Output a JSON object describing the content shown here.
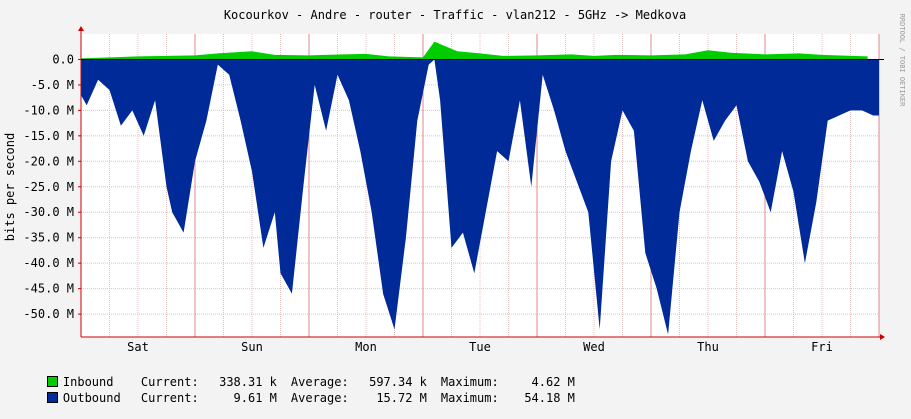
{
  "chart_data": {
    "type": "area",
    "title": "Kocourkov - Andre - router - Traffic - vlan212 - 5GHz -> Medkova",
    "ylabel": "bits per second",
    "side_note": "RRDTOOL / TOBI OETIKER",
    "x_categories": [
      "Sat",
      "Sun",
      "Mon",
      "Tue",
      "Wed",
      "Thu",
      "Fri"
    ],
    "y_ticks": [
      "0.0",
      "-5.0 M",
      "-10.0 M",
      "-15.0 M",
      "-20.0 M",
      "-25.0 M",
      "-30.0 M",
      "-35.0 M",
      "-40.0 M",
      "-45.0 M",
      "-50.0 M"
    ],
    "ylim": [
      -54.5,
      5
    ],
    "grid": true,
    "series": [
      {
        "name": "Inbound",
        "color": "#00cc00",
        "x_day": [
          0.0,
          0.5,
          1.0,
          1.2,
          1.5,
          1.7,
          2.0,
          2.3,
          2.5,
          2.7,
          3.0,
          3.1,
          3.3,
          3.5,
          3.7,
          4.0,
          4.3,
          4.5,
          4.7,
          5.0,
          5.3,
          5.5,
          5.7,
          6.0,
          6.3,
          6.5,
          6.9
        ],
        "values_M": [
          0.2,
          0.6,
          0.8,
          1.2,
          1.6,
          0.9,
          0.8,
          1.0,
          1.1,
          0.6,
          0.4,
          3.5,
          1.6,
          1.2,
          0.7,
          0.8,
          1.0,
          0.7,
          0.9,
          0.8,
          1.0,
          1.8,
          1.3,
          1.0,
          1.2,
          0.9,
          0.6
        ]
      },
      {
        "name": "Outbound",
        "color": "#002a97",
        "x_day": [
          0.0,
          0.05,
          0.15,
          0.25,
          0.35,
          0.45,
          0.55,
          0.65,
          0.75,
          0.8,
          0.9,
          1.0,
          1.1,
          1.2,
          1.3,
          1.4,
          1.5,
          1.6,
          1.7,
          1.75,
          1.85,
          1.95,
          2.05,
          2.15,
          2.25,
          2.35,
          2.45,
          2.55,
          2.65,
          2.75,
          2.85,
          2.95,
          3.05,
          3.1,
          3.15,
          3.25,
          3.35,
          3.45,
          3.55,
          3.65,
          3.75,
          3.85,
          3.95,
          4.05,
          4.15,
          4.25,
          4.35,
          4.45,
          4.55,
          4.65,
          4.75,
          4.85,
          4.95,
          5.05,
          5.15,
          5.25,
          5.35,
          5.45,
          5.55,
          5.65,
          5.75,
          5.85,
          5.95,
          6.05,
          6.15,
          6.25,
          6.35,
          6.45,
          6.55,
          6.65,
          6.75,
          6.85,
          6.95,
          7.0
        ],
        "values_M": [
          -7,
          -9,
          -4,
          -6,
          -13,
          -10,
          -15,
          -8,
          -25,
          -30,
          -34,
          -20,
          -12,
          -1,
          -3,
          -12,
          -22,
          -37,
          -30,
          -42,
          -46,
          -25,
          -5,
          -14,
          -3,
          -8,
          -18,
          -30,
          -46,
          -53,
          -35,
          -12,
          -1,
          0,
          -8,
          -37,
          -34,
          -42,
          -30,
          -18,
          -20,
          -8,
          -25,
          -3,
          -10,
          -18,
          -24,
          -30,
          -53,
          -20,
          -10,
          -14,
          -38,
          -45,
          -54,
          -30,
          -18,
          -8,
          -16,
          -12,
          -9,
          -20,
          -24,
          -30,
          -18,
          -26,
          -40,
          -28,
          -12,
          -11,
          -10,
          -10,
          -11,
          -11
        ]
      }
    ]
  },
  "legend": [
    {
      "key": "inbound",
      "name": "Inbound",
      "color": "#00cc00",
      "current_label": "Current:",
      "current": "338.31 k",
      "average_label": "Average:",
      "average": "597.34 k",
      "maximum_label": "Maximum:",
      "maximum": "4.62 M"
    },
    {
      "key": "outbound",
      "name": "Outbound",
      "color": "#002a97",
      "current_label": "Current:",
      "current": "9.61 M",
      "average_label": "Average:",
      "average": "15.72 M",
      "maximum_label": "Maximum:",
      "maximum": "54.18 M"
    }
  ]
}
